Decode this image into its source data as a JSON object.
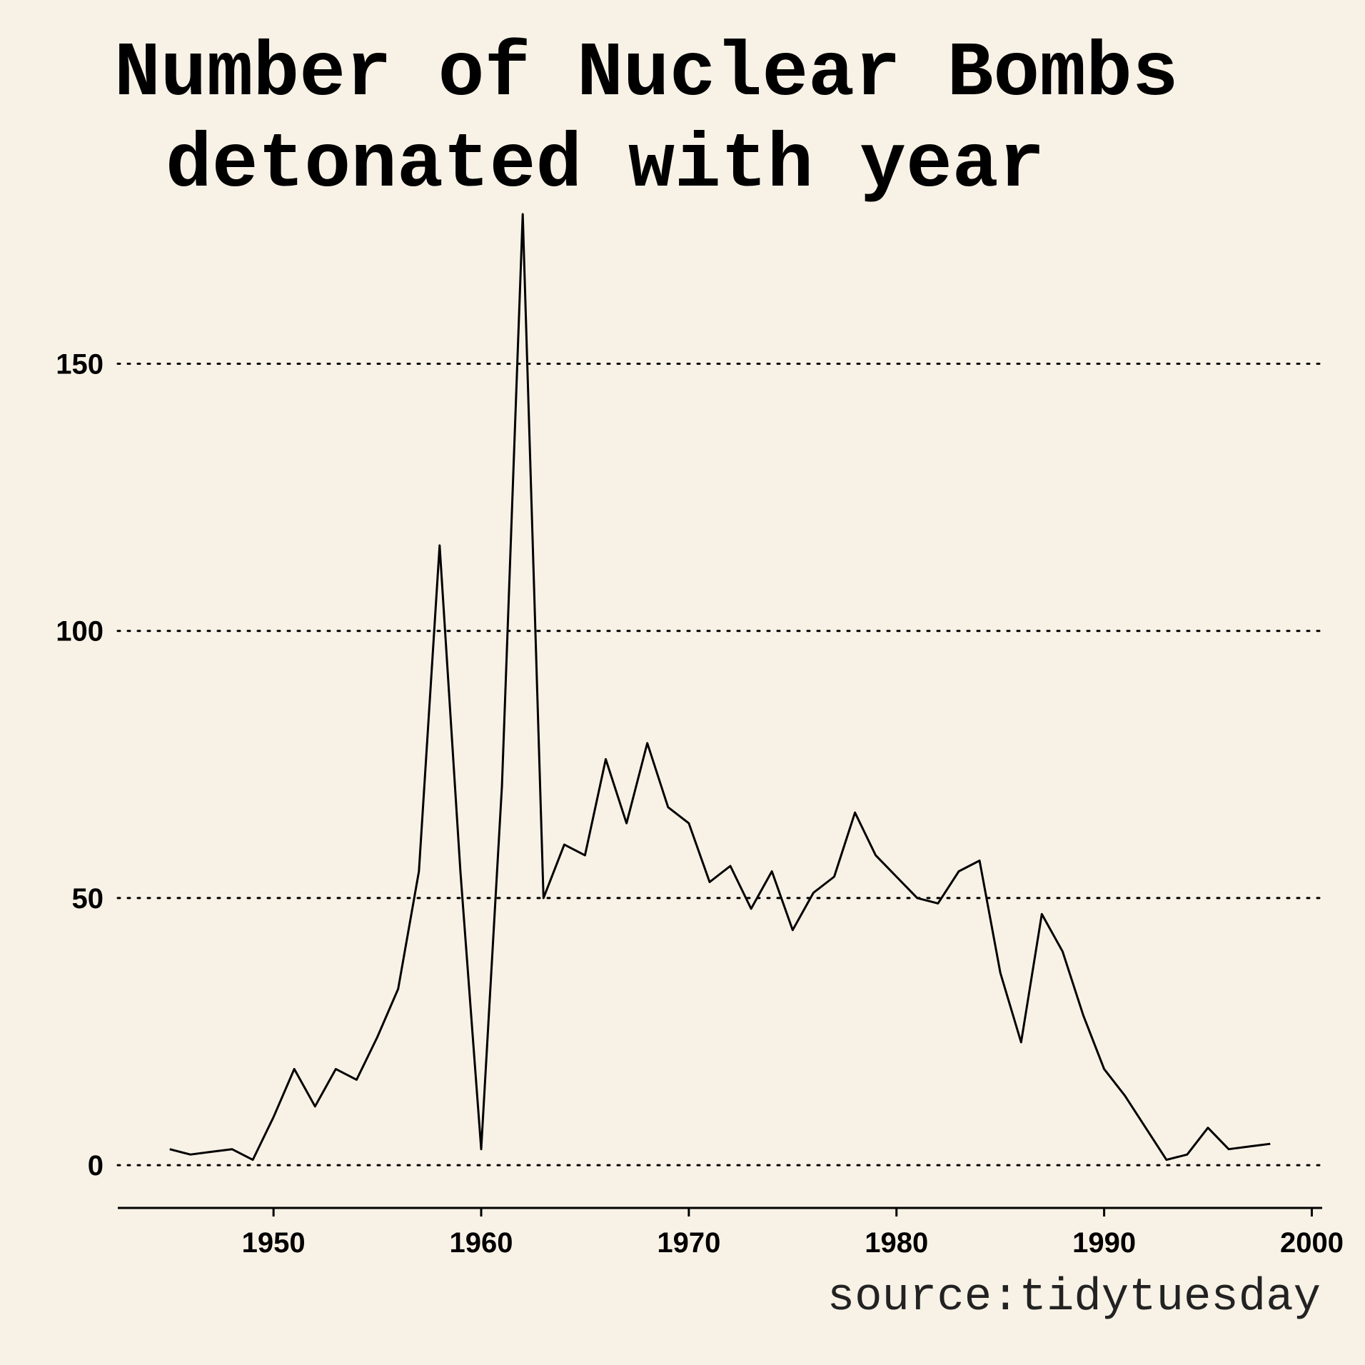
{
  "chart_data": {
    "type": "line",
    "title_lines": [
      "Number of Nuclear Bombs",
      "detonated with year"
    ],
    "caption": "source:tidytuesday",
    "xlabel": "",
    "ylabel": "",
    "xlim": [
      1942.5,
      2000.5
    ],
    "ylim": [
      -8,
      178
    ],
    "x_ticks": [
      1950,
      1960,
      1970,
      1980,
      1990,
      2000
    ],
    "y_ticks": [
      0,
      50,
      100,
      150
    ],
    "grid": "horizontal dotted",
    "line_color": "#000000",
    "background": "#f8f2e6",
    "series": [
      {
        "x": [
          1945,
          1946,
          1947,
          1948,
          1949,
          1950,
          1951,
          1952,
          1953,
          1954,
          1955,
          1956,
          1957,
          1958,
          1959,
          1960,
          1961,
          1962,
          1963,
          1964,
          1965,
          1966,
          1967,
          1968,
          1969,
          1970,
          1971,
          1972,
          1973,
          1974,
          1975,
          1976,
          1977,
          1978,
          1979,
          1980,
          1981,
          1982,
          1983,
          1984,
          1985,
          1986,
          1987,
          1988,
          1989,
          1990,
          1991,
          1992,
          1993,
          1994,
          1995,
          1996,
          1997,
          1998
        ],
        "values": [
          3,
          2,
          2.5,
          3,
          1,
          9,
          18,
          11,
          18,
          16,
          24,
          33,
          55,
          116,
          55,
          3,
          71,
          178,
          50,
          60,
          58,
          76,
          64,
          79,
          67,
          64,
          53,
          56,
          48,
          55,
          44,
          51,
          54,
          66,
          58,
          54,
          50,
          49,
          55,
          57,
          36,
          23,
          47,
          40,
          28,
          18,
          13,
          7,
          1,
          2,
          7,
          3,
          3.5,
          4
        ]
      }
    ]
  }
}
